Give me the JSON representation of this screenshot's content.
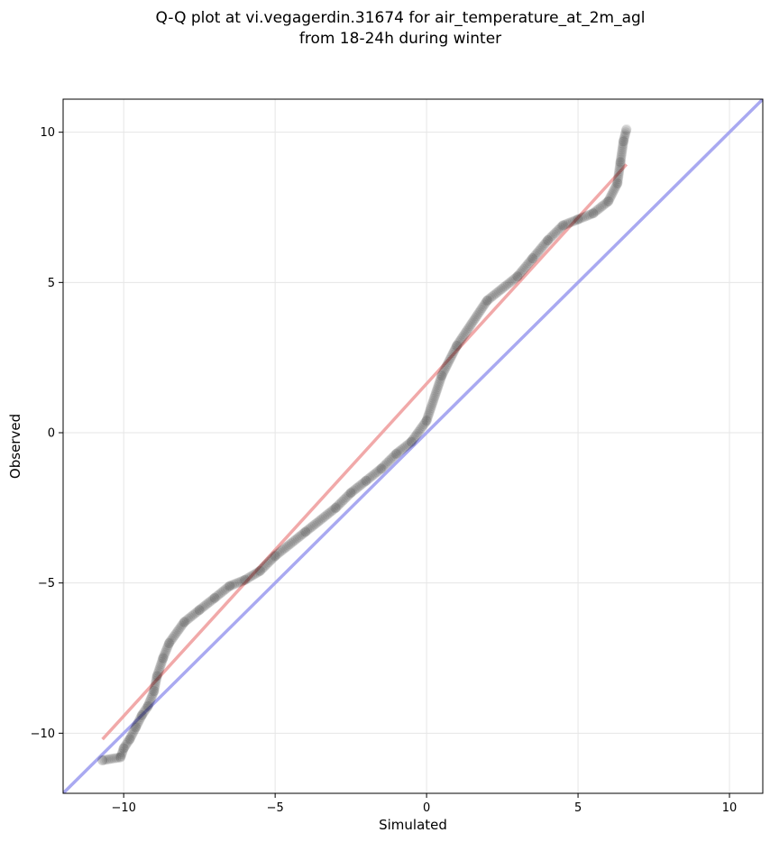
{
  "chart_data": {
    "type": "scatter",
    "title_line1": "Q-Q plot at vi.vegagerdin.31674 for air_temperature_at_2m_agl",
    "title_line2": "from 18-24h during winter",
    "xlabel": "Simulated",
    "ylabel": "Observed",
    "xlim": [
      -12.0,
      11.1
    ],
    "ylim": [
      -12.0,
      11.1
    ],
    "xticks": [
      -10,
      -5,
      0,
      5,
      10
    ],
    "yticks": [
      -10,
      -5,
      0,
      5,
      10
    ],
    "xtick_labels": [
      "−10",
      "−5",
      "0",
      "5",
      "10"
    ],
    "ytick_labels": [
      "−10",
      "−5",
      "0",
      "5",
      "10"
    ],
    "grid": true,
    "reference_line": {
      "name": "identity",
      "slope": 1,
      "intercept": 0,
      "color": "#a0a0f0"
    },
    "fit_line": {
      "x_range": [
        -10.7,
        6.6
      ],
      "slope": 1.1059,
      "intercept": 1.63,
      "color": "#f0a0a0"
    },
    "point_color": "#000000",
    "quantile_curve_anchors": {
      "x": [
        -10.7,
        -10.1,
        -10.0,
        -9.8,
        -9.6,
        -9.4,
        -9.2,
        -9.0,
        -8.9,
        -8.7,
        -8.5,
        -8.0,
        -7.5,
        -7.0,
        -6.5,
        -6.0,
        -5.5,
        -5.0,
        -4.0,
        -3.0,
        -2.5,
        -2.0,
        -1.5,
        -1.0,
        -0.5,
        0.0,
        0.5,
        1.0,
        2.0,
        3.0,
        3.5,
        4.0,
        4.5,
        5.0,
        5.5,
        6.0,
        6.3,
        6.4,
        6.5,
        6.6
      ],
      "y": [
        -10.9,
        -10.8,
        -10.5,
        -10.2,
        -9.8,
        -9.4,
        -9.1,
        -8.6,
        -8.1,
        -7.5,
        -7.0,
        -6.3,
        -5.9,
        -5.5,
        -5.1,
        -4.9,
        -4.6,
        -4.1,
        -3.3,
        -2.5,
        -2.0,
        -1.6,
        -1.2,
        -0.7,
        -0.3,
        0.4,
        1.9,
        2.9,
        4.4,
        5.2,
        5.8,
        6.4,
        6.9,
        7.1,
        7.3,
        7.7,
        8.3,
        9.0,
        9.7,
        10.1
      ]
    }
  }
}
